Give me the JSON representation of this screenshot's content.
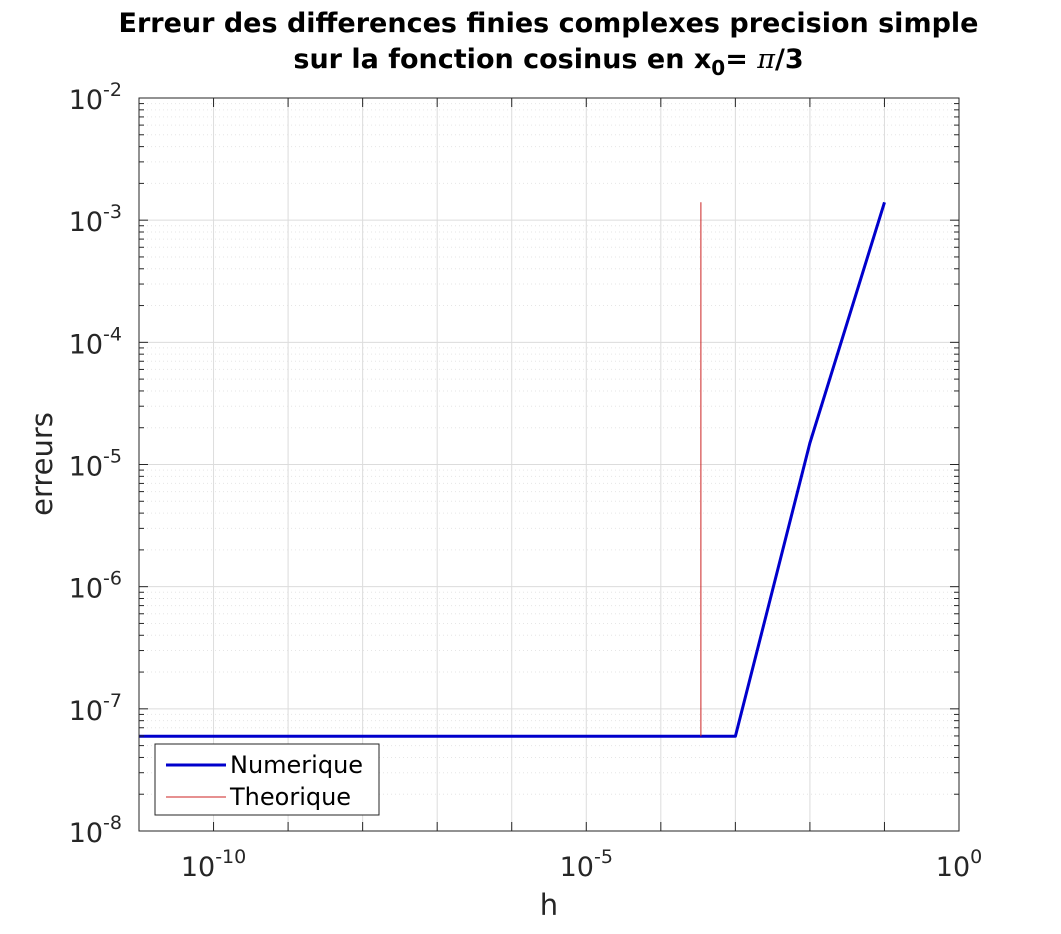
{
  "chart_data": {
    "type": "line",
    "title_line1": "Erreur des differences finies complexes precision simple",
    "title_line2_prefix": "sur la fonction cosinus en x",
    "title_line2_sub": "0",
    "title_line2_mid": "= ",
    "title_line2_pi": "π",
    "title_line2_suffix": "/3",
    "xlabel": "h",
    "ylabel": "erreurs",
    "xscale": "log",
    "yscale": "log",
    "xlim": [
      1e-11,
      1
    ],
    "ylim": [
      1e-08,
      0.01
    ],
    "xticks": [
      {
        "value": 1e-10,
        "base": "10",
        "exp": "-10"
      },
      {
        "value": 1e-05,
        "base": "10",
        "exp": "-5"
      },
      {
        "value": 1,
        "base": "10",
        "exp": "0"
      }
    ],
    "yticks": [
      {
        "value": 1e-08,
        "base": "10",
        "exp": "-8"
      },
      {
        "value": 1e-07,
        "base": "10",
        "exp": "-7"
      },
      {
        "value": 1e-06,
        "base": "10",
        "exp": "-6"
      },
      {
        "value": 1e-05,
        "base": "10",
        "exp": "-5"
      },
      {
        "value": 0.0001,
        "base": "10",
        "exp": "-4"
      },
      {
        "value": 0.001,
        "base": "10",
        "exp": "-3"
      },
      {
        "value": 0.01,
        "base": "10",
        "exp": "-2"
      }
    ],
    "grid": true,
    "minor_grid": true,
    "legend_position": "bottom-left",
    "series": [
      {
        "name": "Numerique",
        "color": "#0000cc",
        "x": [
          1e-11,
          1e-10,
          1e-09,
          1e-08,
          1e-07,
          1e-06,
          1e-05,
          0.0001,
          0.001,
          0.01,
          0.1
        ],
        "y": [
          5.96e-08,
          5.96e-08,
          5.96e-08,
          5.96e-08,
          5.96e-08,
          5.96e-08,
          5.96e-08,
          5.96e-08,
          5.96e-08,
          1.5e-05,
          0.0014
        ]
      },
      {
        "name": "Theorique",
        "color": "#cc2222",
        "x": [
          0.000345,
          0.000345
        ],
        "y": [
          5.96e-08,
          0.0014
        ]
      }
    ]
  }
}
